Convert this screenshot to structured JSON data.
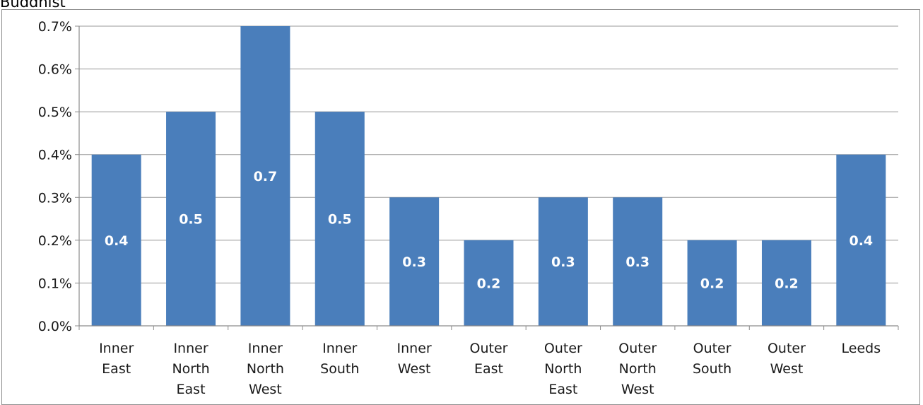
{
  "chart_data": {
    "type": "bar",
    "title": "Buddhist",
    "xlabel": "",
    "ylabel": "",
    "categories": [
      [
        "Inner",
        "East"
      ],
      [
        "Inner",
        "North",
        "East"
      ],
      [
        "Inner",
        "North",
        "West"
      ],
      [
        "Inner",
        "South"
      ],
      [
        "Inner",
        "West"
      ],
      [
        "Outer",
        "East"
      ],
      [
        "Outer",
        "North",
        "East"
      ],
      [
        "Outer",
        "North",
        "West"
      ],
      [
        "Outer",
        "South"
      ],
      [
        "Outer",
        "West"
      ],
      [
        "Leeds"
      ]
    ],
    "values": [
      0.4,
      0.5,
      0.7,
      0.5,
      0.3,
      0.2,
      0.3,
      0.3,
      0.2,
      0.2,
      0.4
    ],
    "data_labels": [
      "0.4",
      "0.5",
      "0.7",
      "0.5",
      "0.3",
      "0.2",
      "0.3",
      "0.3",
      "0.2",
      "0.2",
      "0.4"
    ],
    "ylim": [
      0,
      0.7
    ],
    "yticks": [
      0,
      0.1,
      0.2,
      0.3,
      0.4,
      0.5,
      0.6,
      0.7
    ],
    "ytick_labels": [
      "0.0%",
      "0.1%",
      "0.2%",
      "0.3%",
      "0.4%",
      "0.5%",
      "0.6%",
      "0.7%"
    ],
    "grid": true,
    "legend": "none",
    "colors": {
      "bar": "#4a7ebb",
      "gridline": "#9a9a9a",
      "axis": "#8c8c8c",
      "label": "#ffffff"
    }
  }
}
